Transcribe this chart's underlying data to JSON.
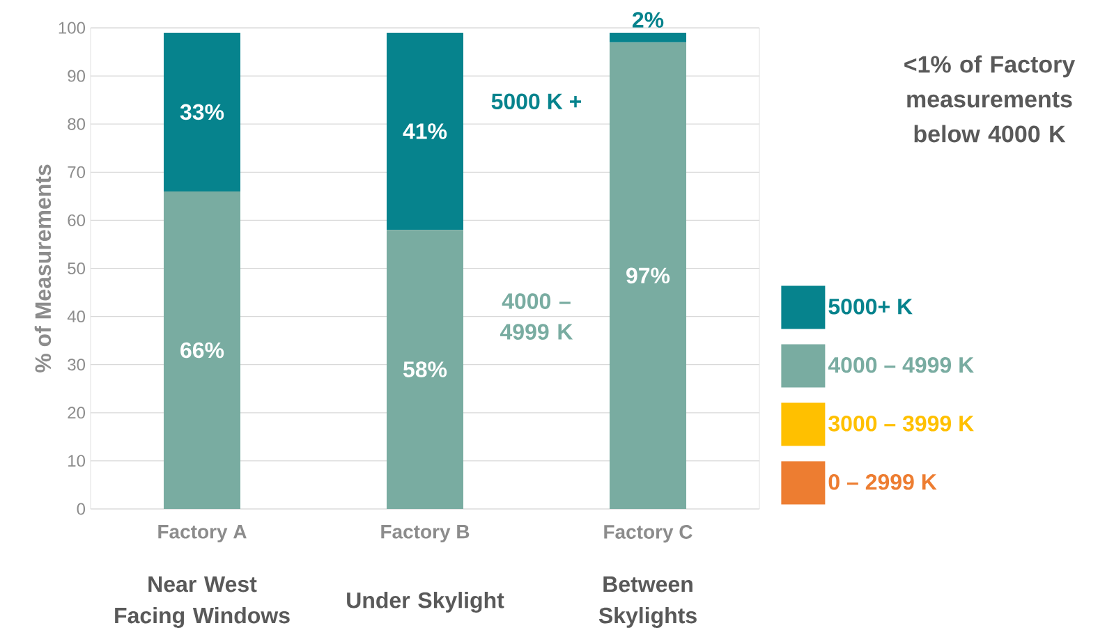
{
  "chart_data": {
    "type": "bar",
    "stacked": true,
    "ylabel": "% of Measurements",
    "categories": [
      "Factory A",
      "Factory B",
      "Factory C"
    ],
    "series": [
      {
        "name": "0 – 2999 K",
        "color": "#ed7d31",
        "values": [
          0,
          0,
          0
        ]
      },
      {
        "name": "3000 – 3999 K",
        "color": "#ffc000",
        "values": [
          0,
          0,
          0
        ]
      },
      {
        "name": "4000 – 4999 K",
        "color": "#79aca1",
        "values": [
          66,
          58,
          97
        ],
        "value_labels": [
          "66%",
          "58%",
          "97%"
        ]
      },
      {
        "name": "5000+ K",
        "color": "#06838d",
        "values": [
          33,
          41,
          2
        ],
        "value_labels": [
          "33%",
          "41%",
          "2%"
        ]
      }
    ],
    "ylim": [
      0,
      100
    ],
    "yticks": [
      0,
      10,
      20,
      30,
      40,
      50,
      60,
      70,
      80,
      90,
      100
    ],
    "grid": "y",
    "legend": "right",
    "annotations": [
      "<1% of Factory measurements below 4000 K",
      "5000 K +",
      "4000 – 4999 K",
      "Near West Facing Windows",
      "Under Skylight",
      "Between Skylights"
    ]
  }
}
